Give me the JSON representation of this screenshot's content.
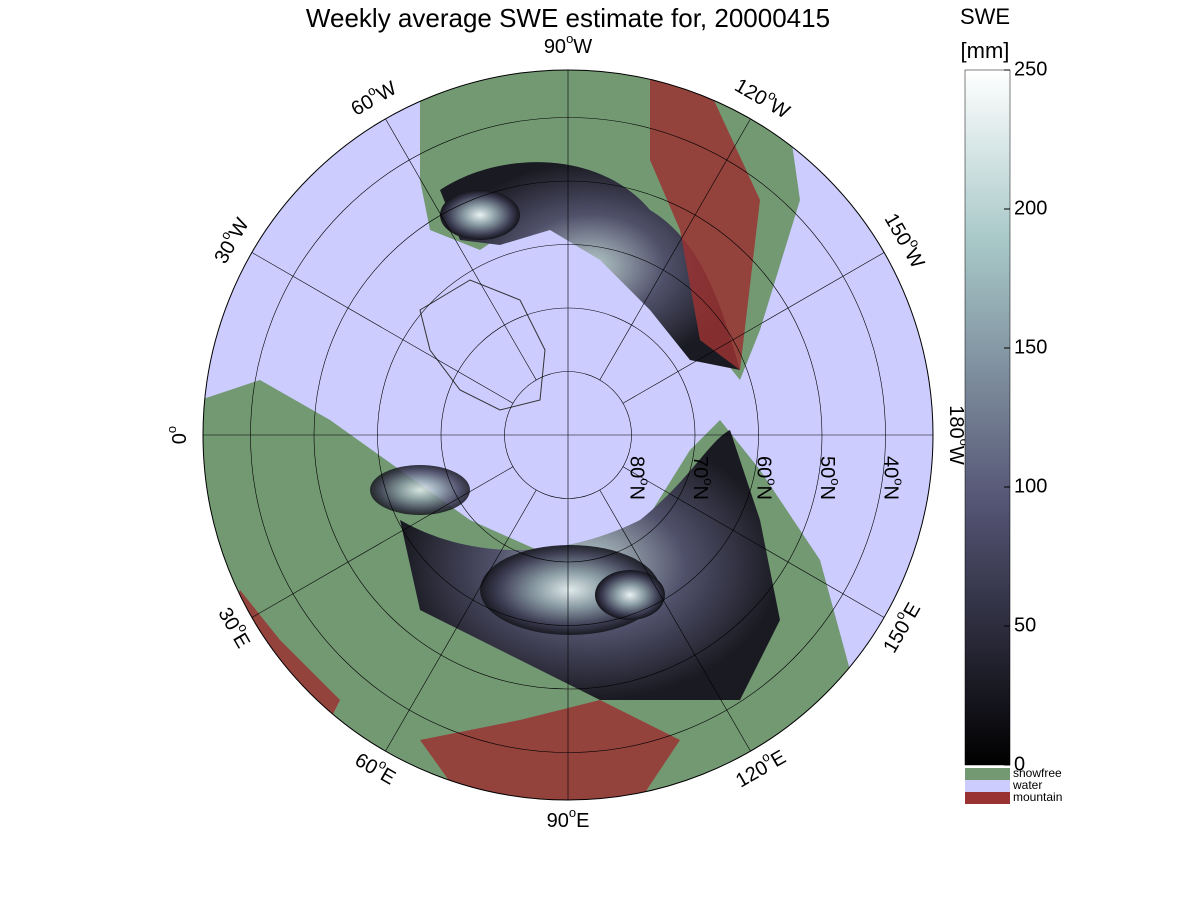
{
  "title": "Weekly average SWE estimate for, 20000415",
  "degree_mark": "o",
  "meridians": [
    {
      "value": 0,
      "label": "0"
    },
    {
      "value": 30,
      "label": "30",
      "hemisphere": "E"
    },
    {
      "value": 60,
      "label": "60",
      "hemisphere": "E"
    },
    {
      "value": 90,
      "label": "90",
      "hemisphere": "E"
    },
    {
      "value": 120,
      "label": "120",
      "hemisphere": "E"
    },
    {
      "value": 150,
      "label": "150",
      "hemisphere": "E"
    },
    {
      "value": -180,
      "label": "180",
      "hemisphere": "W"
    },
    {
      "value": -150,
      "label": "150",
      "hemisphere": "W"
    },
    {
      "value": -120,
      "label": "120",
      "hemisphere": "W"
    },
    {
      "value": -90,
      "label": "90",
      "hemisphere": "W"
    },
    {
      "value": -60,
      "label": "60",
      "hemisphere": "W"
    },
    {
      "value": -30,
      "label": "30",
      "hemisphere": "W"
    }
  ],
  "parallels": [
    {
      "value": 80,
      "label": "80",
      "hemisphere": "N"
    },
    {
      "value": 70,
      "label": "70",
      "hemisphere": "N"
    },
    {
      "value": 60,
      "label": "60",
      "hemisphere": "N"
    },
    {
      "value": 50,
      "label": "50",
      "hemisphere": "N"
    },
    {
      "value": 40,
      "label": "40",
      "hemisphere": "N"
    }
  ],
  "colorbar": {
    "title": "SWE",
    "unit": "[mm]",
    "lim": [
      0,
      250
    ],
    "ticks": [
      0,
      50,
      100,
      150,
      200,
      250
    ]
  },
  "legend": [
    {
      "name": "snowfree",
      "color": "#739973"
    },
    {
      "name": "water",
      "color": "#ccccff"
    },
    {
      "name": "mountain",
      "color": "#993333"
    }
  ]
}
